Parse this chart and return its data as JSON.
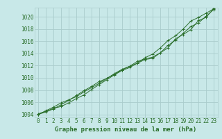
{
  "xlabel": "Graphe pression niveau de la mer (hPa)",
  "ylim": [
    1003.5,
    1021.5
  ],
  "xlim": [
    -0.5,
    23.5
  ],
  "yticks": [
    1004,
    1006,
    1008,
    1010,
    1012,
    1014,
    1016,
    1018,
    1020
  ],
  "xticks": [
    0,
    1,
    2,
    3,
    4,
    5,
    6,
    7,
    8,
    9,
    10,
    11,
    12,
    13,
    14,
    15,
    16,
    17,
    18,
    19,
    20,
    21,
    22,
    23
  ],
  "bg_color": "#c8e8e8",
  "grid_color": "#aacccc",
  "line_color": "#2a6e2a",
  "data_x": [
    0,
    1,
    2,
    3,
    4,
    5,
    6,
    7,
    8,
    9,
    10,
    11,
    12,
    13,
    14,
    15,
    16,
    17,
    18,
    19,
    20,
    21,
    22,
    23
  ],
  "data_y1": [
    1004.1,
    1004.5,
    1005.0,
    1005.3,
    1005.9,
    1006.6,
    1007.2,
    1008.1,
    1008.9,
    1009.7,
    1010.5,
    1011.2,
    1011.7,
    1012.4,
    1013.0,
    1013.2,
    1014.1,
    1015.3,
    1016.2,
    1017.3,
    1018.4,
    1019.0,
    1020.1,
    1021.2
  ],
  "data_y2": [
    1004.0,
    1004.4,
    1004.9,
    1005.6,
    1006.3,
    1007.1,
    1007.9,
    1008.6,
    1009.4,
    1009.9,
    1010.6,
    1011.3,
    1011.9,
    1012.4,
    1013.3,
    1013.9,
    1014.9,
    1016.1,
    1016.9,
    1018.0,
    1019.3,
    1019.9,
    1020.6,
    1021.3
  ],
  "data_y3": [
    1004.0,
    1004.6,
    1005.2,
    1005.9,
    1006.4,
    1006.9,
    1007.7,
    1008.4,
    1009.1,
    1009.9,
    1010.7,
    1011.4,
    1011.9,
    1012.7,
    1013.1,
    1013.4,
    1014.1,
    1014.9,
    1016.4,
    1017.1,
    1017.9,
    1019.4,
    1019.9,
    1021.4
  ],
  "tick_fontsize": 5.5,
  "xlabel_fontsize": 6.5
}
